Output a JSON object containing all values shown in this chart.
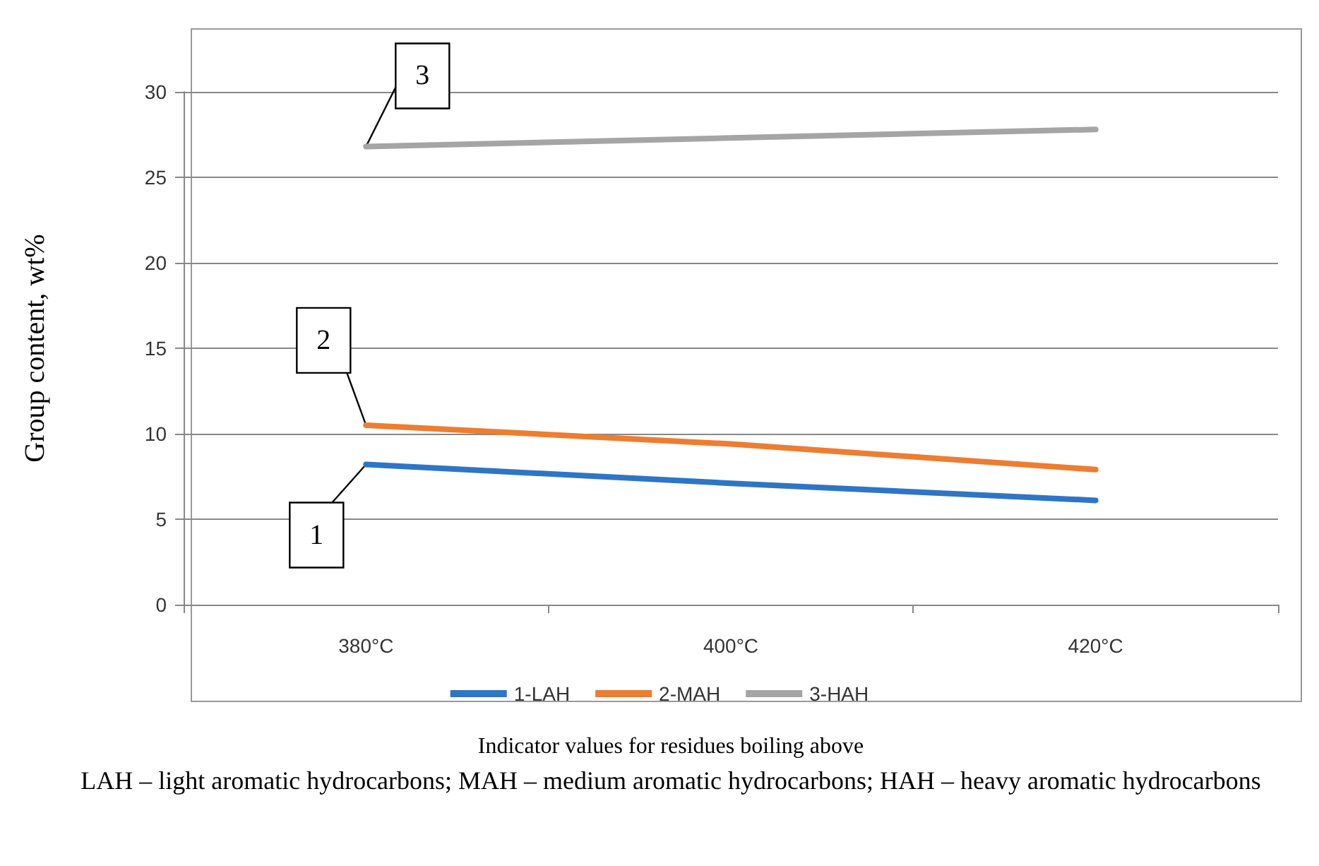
{
  "chart_data": {
    "type": "line",
    "ylabel": "Group content, wt%",
    "categories": [
      "380°C",
      "400°C",
      "420°C"
    ],
    "series": [
      {
        "name": "1-LAH",
        "color": "#2e75c6",
        "values": [
          8.2,
          7.1,
          6.1
        ]
      },
      {
        "name": "2-MAH",
        "color": "#ed7d31",
        "values": [
          10.5,
          9.4,
          7.9
        ]
      },
      {
        "name": "3-HAH",
        "color": "#a5a5a5",
        "values": [
          26.8,
          27.3,
          27.8
        ]
      }
    ],
    "ylim": [
      0,
      30
    ],
    "yticks": [
      0,
      5,
      10,
      15,
      20,
      25,
      30
    ],
    "grid": "y",
    "legend": "bottom",
    "marker": "none",
    "line_style": "solid",
    "annotations": [
      {
        "text": "1",
        "x": "380°C",
        "y": 8.2
      },
      {
        "text": "2",
        "x": "380°C",
        "y": 10.5
      },
      {
        "text": "3",
        "x": "380°C",
        "y": 26.8
      },
      "Indicator values for residues boiling above",
      "LAH – light aromatic hydrocarbons; MAH – medium aromatic hydrocarbons; HAH – heavy aromatic hydrocarbons"
    ]
  }
}
